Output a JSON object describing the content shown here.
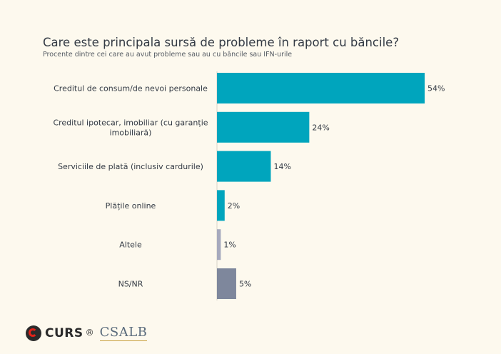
{
  "chart_data": {
    "type": "bar",
    "orientation": "horizontal",
    "title": "Care este principala sursă de probleme în raport cu băncile?",
    "subtitle": "Procente dintre cei care au avut probleme sau au cu băncile sau IFN-urile",
    "categories": [
      [
        "Creditul de consum/de nevoi personale"
      ],
      [
        "Creditul ipotecar, imobiliar (cu garanție",
        "imobiliară)"
      ],
      [
        "Serviciile de plată (inclusiv cardurile)"
      ],
      [
        "Plățile online"
      ],
      [
        "Altele"
      ],
      [
        "NS/NR"
      ]
    ],
    "values": [
      54,
      24,
      14,
      2,
      1,
      5
    ],
    "value_labels": [
      "54%",
      "24%",
      "14%",
      "2%",
      "1%",
      "5%"
    ],
    "colors": [
      "#00a5bd",
      "#00a5bd",
      "#00a5bd",
      "#00a5bd",
      "#a6a9bd",
      "#7e879c"
    ],
    "xlim": [
      0,
      100
    ],
    "grid": false,
    "legend": "none"
  },
  "footer": {
    "logo_curs": "CURS",
    "registered_mark": "®",
    "logo_csalb": "CSALB"
  }
}
